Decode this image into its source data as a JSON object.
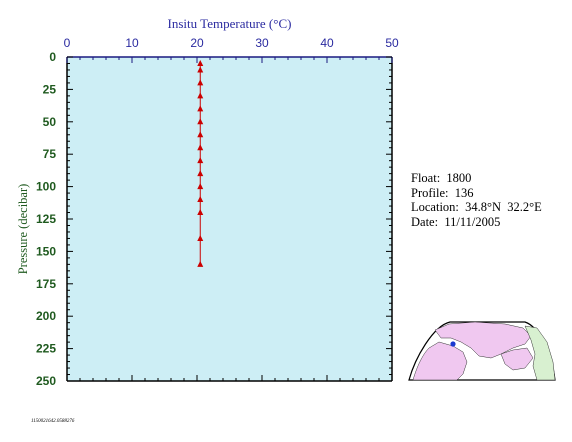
{
  "chart_data": {
    "type": "scatter",
    "title": "Insitu Temperature (°C)",
    "ylabel": "Pressure (decibar)",
    "xlim": [
      0,
      50
    ],
    "ylim": [
      0,
      250
    ],
    "y_inverted": true,
    "x_ticks": [
      "0",
      "10",
      "20",
      "30",
      "40",
      "50"
    ],
    "y_ticks": [
      "0",
      "25",
      "50",
      "75",
      "100",
      "125",
      "150",
      "175",
      "200",
      "225",
      "250"
    ],
    "grid": false,
    "series": [
      {
        "marker": "triangle",
        "color": "#cc0000",
        "points": [
          {
            "x": 20.5,
            "y": 5
          },
          {
            "x": 20.5,
            "y": 10
          },
          {
            "x": 20.5,
            "y": 20
          },
          {
            "x": 20.5,
            "y": 30
          },
          {
            "x": 20.5,
            "y": 40
          },
          {
            "x": 20.5,
            "y": 50
          },
          {
            "x": 20.5,
            "y": 60
          },
          {
            "x": 20.5,
            "y": 70
          },
          {
            "x": 20.5,
            "y": 80
          },
          {
            "x": 20.5,
            "y": 90
          },
          {
            "x": 20.5,
            "y": 100
          },
          {
            "x": 20.5,
            "y": 110
          },
          {
            "x": 20.5,
            "y": 120
          },
          {
            "x": 20.5,
            "y": 140
          },
          {
            "x": 20.5,
            "y": 160
          }
        ]
      }
    ]
  },
  "info": {
    "float_label": "Float:",
    "float_value": "1800",
    "profile_label": "Profile:",
    "profile_value": "136",
    "location_label": "Location:",
    "location_value": "34.8°N  32.2°E",
    "date_label": "Date:",
    "date_value": "11/11/2005"
  },
  "footer_code": "1150021642.0588276",
  "colors": {
    "plot_bg": "#cdeef5",
    "axis": "#1a1a80",
    "tick_label_x": "#2a2aa0",
    "tick_label_y": "#1f5a1f",
    "marker": "#cc0000",
    "map_land": "#f0c8f0",
    "map_sea": "#ffffff",
    "map_other": "#d8f0d0",
    "location_marker": "#1a3ad0"
  }
}
